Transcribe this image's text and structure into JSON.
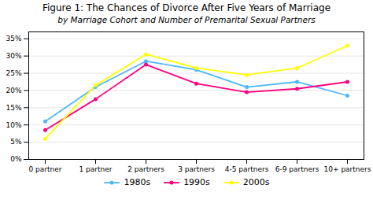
{
  "chart_data": {
    "type": "line",
    "title": "Figure 1: The Chances of Divorce After Five Years of Marriage",
    "subtitle": "by Marriage Cohort and Number of Premarital Sexual Partners",
    "categories": [
      "0 partner",
      "1 partner",
      "2 partners",
      "3 partners",
      "4-5 partners",
      "6-9 partners",
      "10+ partners"
    ],
    "series": [
      {
        "name": "1980s",
        "color": "#4db8ff",
        "values": [
          11,
          21,
          28.5,
          26,
          21,
          22.5,
          18.5
        ]
      },
      {
        "name": "1990s",
        "color": "#ff007f",
        "values": [
          8.5,
          17.5,
          27.5,
          22,
          19.5,
          20.5,
          22.5
        ]
      },
      {
        "name": "2000s",
        "color": "#ffff00",
        "values": [
          6,
          21.5,
          30.5,
          26.5,
          24.5,
          26.5,
          33
        ]
      }
    ],
    "ylim": [
      0,
      37
    ],
    "yticks": [
      {
        "value": 0,
        "label": "0%"
      },
      {
        "value": 5,
        "label": "5%"
      },
      {
        "value": 10,
        "label": "10%"
      },
      {
        "value": 15,
        "label": "15%"
      },
      {
        "value": 20,
        "label": "20%"
      },
      {
        "value": 25,
        "label": "25%"
      },
      {
        "value": 30,
        "label": "30%"
      },
      {
        "value": 35,
        "label": "35%"
      }
    ],
    "grid": true,
    "legend": "bottom",
    "marker": "circle"
  }
}
